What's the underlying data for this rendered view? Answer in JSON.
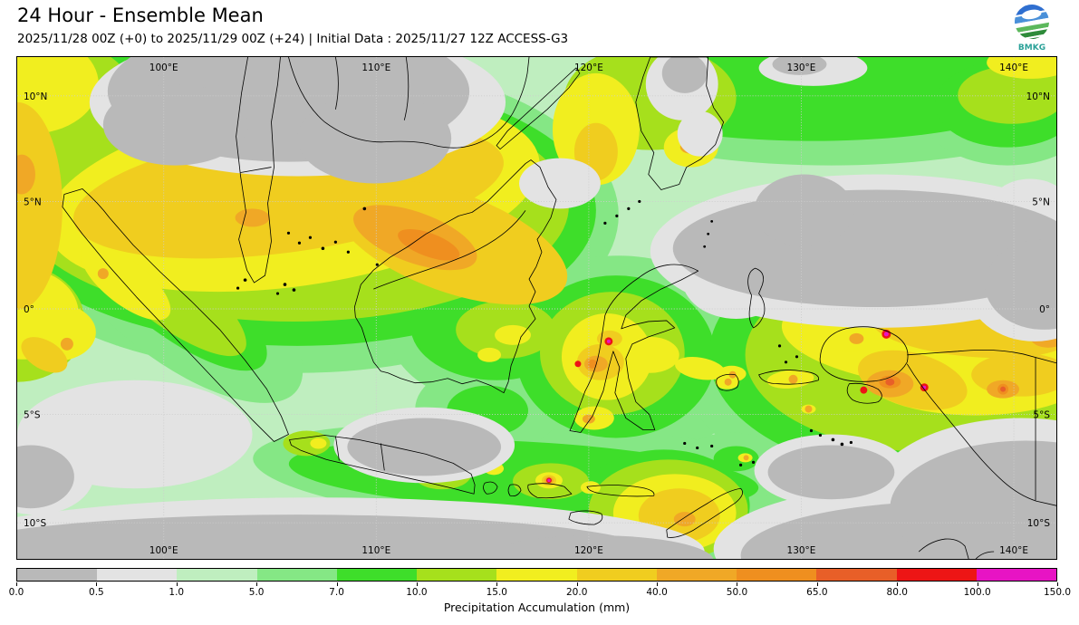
{
  "header": {
    "title": "24 Hour - Ensemble Mean",
    "subtitle": "2025/11/28 00Z (+0) to 2025/11/29 00Z (+24) | Initial Data : 2025/11/27 12Z ACCESS-G3",
    "logo": {
      "text": "BMKG"
    }
  },
  "map": {
    "lon_labels": [
      "100°E",
      "110°E",
      "120°E",
      "130°E",
      "140°E"
    ],
    "lat_labels": [
      "10°N",
      "5°N",
      "0°",
      "5°S",
      "10°S"
    ]
  },
  "colorbar": {
    "label": "Precipitation Accumulation (mm)",
    "ticks": [
      "0.0",
      "0.5",
      "1.0",
      "5.0",
      "7.0",
      "10.0",
      "15.0",
      "20.0",
      "40.0",
      "50.0",
      "65.0",
      "80.0",
      "100.0",
      "150.0"
    ],
    "colors": [
      "#b9b9b9",
      "#e3e3e3",
      "#bfeebf",
      "#85e785",
      "#3ede2a",
      "#a6e01c",
      "#f1ee1f",
      "#f0cd1f",
      "#f0a826",
      "#ef8f1f",
      "#e85f28",
      "#ed1515",
      "#e714c4"
    ]
  },
  "chart_data": {
    "type": "heatmap",
    "title": "24 Hour - Ensemble Mean",
    "subtitle": "2025/11/28 00Z (+0) to 2025/11/29 00Z (+24) | Initial Data : 2025/11/27 12Z ACCESS-G3",
    "colorbar_label": "Precipitation Accumulation (mm)",
    "scale_bounds_mm": [
      0.0,
      0.5,
      1.0,
      5.0,
      7.0,
      10.0,
      15.0,
      20.0,
      40.0,
      50.0,
      65.0,
      80.0,
      100.0,
      150.0
    ],
    "scale_colors": [
      "#b9b9b9",
      "#e3e3e3",
      "#bfeebf",
      "#85e785",
      "#3ede2a",
      "#a6e01c",
      "#f1ee1f",
      "#f0cd1f",
      "#f0a826",
      "#ef8f1f",
      "#e85f28",
      "#ed1515",
      "#e714c4"
    ],
    "lon_ticks": [
      "100°E",
      "110°E",
      "120°E",
      "130°E",
      "140°E"
    ],
    "lat_ticks": [
      "10°N",
      "5°N",
      "0°",
      "5°S",
      "10°S"
    ],
    "legend_position": "bottom",
    "region": "Indonesia / Maritime Continent"
  }
}
